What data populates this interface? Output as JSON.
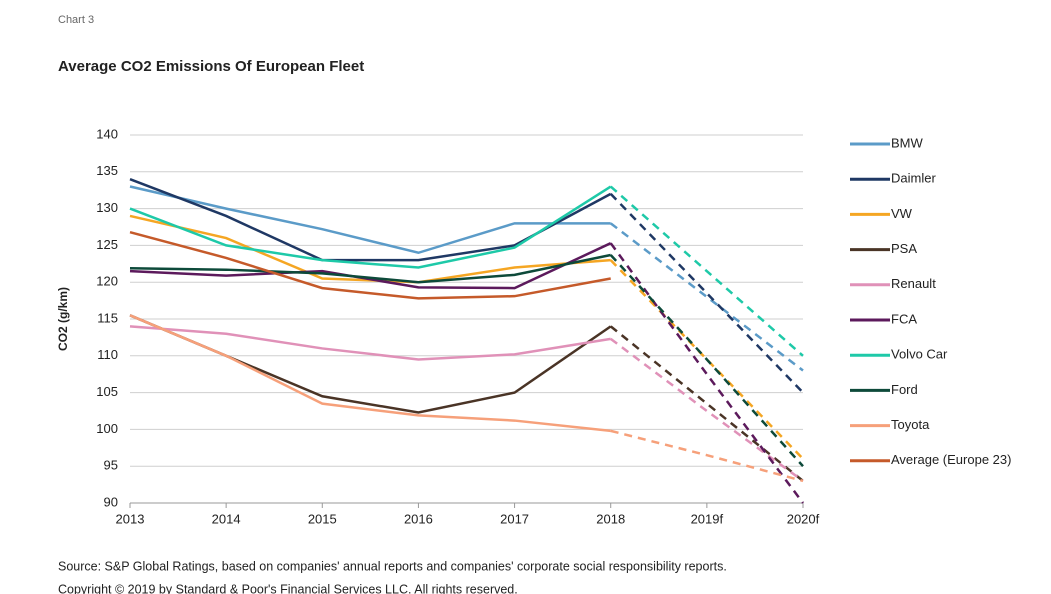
{
  "chart_data": {
    "type": "line",
    "label": "Chart 3",
    "title": "Average CO2 Emissions Of European Fleet",
    "y_label": "CO2 (g/km)",
    "source": "Source: S&P Global Ratings, based on companies' annual reports and companies' corporate social responsibility reports.",
    "copyright": "Copyright © 2019 by Standard & Poor's Financial Services LLC. All rights reserved.",
    "categories": [
      "2013",
      "2014",
      "2015",
      "2016",
      "2017",
      "2018",
      "2019f",
      "2020f"
    ],
    "dashed_from": 5,
    "ylim": [
      90,
      140
    ],
    "yticks": [
      90,
      95,
      100,
      105,
      110,
      115,
      120,
      125,
      130,
      135,
      140
    ],
    "grid": true,
    "legend": "right",
    "series": [
      {
        "name": "BMW",
        "color": "#5b9bc8",
        "values": [
          133,
          130,
          127.2,
          124,
          128,
          128,
          118,
          108
        ]
      },
      {
        "name": "Daimler",
        "color": "#1f3864",
        "values": [
          134,
          129,
          123,
          123,
          125,
          132,
          118.5,
          105
        ]
      },
      {
        "name": "VW",
        "color": "#f5a623",
        "values": [
          129,
          126,
          120.5,
          120,
          122,
          123,
          109.5,
          96
        ]
      },
      {
        "name": "PSA",
        "color": "#4a3426",
        "values": [
          115.5,
          110,
          104.5,
          102.3,
          105,
          114,
          103.5,
          93
        ]
      },
      {
        "name": "Renault",
        "color": "#e091b8",
        "values": [
          114,
          113,
          111,
          109.5,
          110.2,
          112.3,
          102.5,
          93
        ]
      },
      {
        "name": "FCA",
        "color": "#5c1a5c",
        "values": [
          121.5,
          120.9,
          121.5,
          119.3,
          119.2,
          125.3,
          107.5,
          90
        ]
      },
      {
        "name": "Volvo Car",
        "color": "#1ec9a8",
        "values": [
          130,
          125,
          123,
          122,
          124.7,
          133,
          121.5,
          110
        ]
      },
      {
        "name": "Ford",
        "color": "#0d4a3a",
        "values": [
          121.9,
          121.7,
          121.2,
          120,
          121,
          123.7,
          109.5,
          95
        ]
      },
      {
        "name": "Toyota",
        "color": "#f6a07a",
        "values": [
          115.5,
          110,
          103.5,
          101.9,
          101.2,
          99.8,
          96.5,
          93
        ]
      },
      {
        "name": "Average (Europe 23)",
        "color": "#c55a2a",
        "values": [
          126.8,
          123.3,
          119.2,
          117.8,
          118.1,
          120.5,
          null,
          null
        ]
      }
    ]
  }
}
